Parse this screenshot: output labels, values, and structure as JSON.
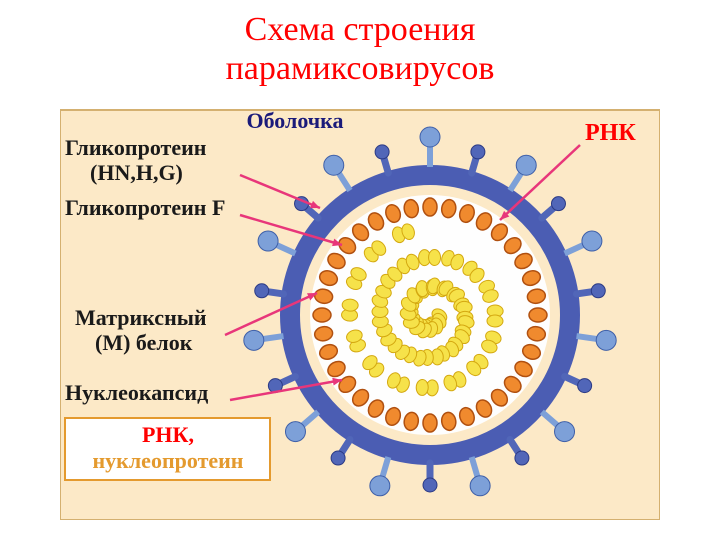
{
  "title": {
    "line1": "Схема строения",
    "line2": "парамиксовирусов",
    "color": "#ff0000",
    "fontsize": 34
  },
  "diagram": {
    "background": "#fce9c7",
    "envelope": {
      "outer_color": "#4b5db3",
      "stroke_width": 20,
      "radius": 140
    },
    "inner_membrane": {
      "fill": "#fefefe",
      "radius": 120
    },
    "capsid_beads": {
      "ring_radius": 108,
      "bead_rx": 9,
      "bead_ry": 7,
      "fill": "#f08a2e",
      "stroke": "#b05010",
      "count": 36
    },
    "matrix_edge": "#c06018",
    "rna_spiral": {
      "fill": "#f6e24a",
      "stroke": "#d4a810",
      "seg_count": 42
    },
    "spike_hn": {
      "color": "#7da0d8",
      "stroke": "#3e5fa8",
      "count": 11
    },
    "spike_f": {
      "color": "#5166b8",
      "stroke": "#2b3a85",
      "count": 11
    },
    "labels": {
      "envelope": {
        "text": "Оболочка",
        "color": "#1a1a7a",
        "fontsize": 22
      },
      "glyco_hn": {
        "text1": "Гликопротеин",
        "text2": "(HN,H,G)",
        "color": "#1a1a1a",
        "fontsize": 22
      },
      "glyco_f": {
        "text": "Гликопротеин F",
        "color": "#1a1a1a",
        "fontsize": 22
      },
      "matrix": {
        "text1": "Матриксный",
        "text2": "(М) белок",
        "color": "#1a1a1a",
        "fontsize": 22
      },
      "nucleocapsid": {
        "text": "Нуклеокапсид",
        "color": "#1a1a1a",
        "fontsize": 22
      },
      "rnk": {
        "text": "РНК",
        "color": "#ff0000",
        "fontsize": 24
      },
      "box": {
        "text1": "РНК,",
        "text2": "нуклеопротеин",
        "color1": "#ff0000",
        "color2": "#e49a2e",
        "fontsize": 22
      }
    },
    "arrow_color": "#e8367a"
  }
}
